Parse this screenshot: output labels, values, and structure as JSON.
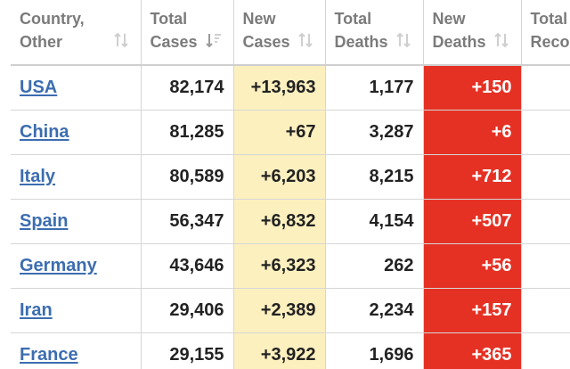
{
  "table": {
    "headers": [
      {
        "label": "Country,\nOther",
        "sort_icon": "sort-arrows-icon"
      },
      {
        "label": "Total\nCases",
        "sort_icon": "sort-descending-icon"
      },
      {
        "label": "New\nCases",
        "sort_icon": "sort-arrows-icon"
      },
      {
        "label": "Total\nDeaths",
        "sort_icon": "sort-arrows-icon"
      },
      {
        "label": "New\nDeaths",
        "sort_icon": "sort-arrows-icon"
      },
      {
        "label": "Total\nReco",
        "sort_icon": ""
      }
    ],
    "rows": [
      {
        "country": "USA",
        "total_cases": "82,174",
        "new_cases": "+13,963",
        "total_deaths": "1,177",
        "new_deaths": "+150"
      },
      {
        "country": "China",
        "total_cases": "81,285",
        "new_cases": "+67",
        "total_deaths": "3,287",
        "new_deaths": "+6"
      },
      {
        "country": "Italy",
        "total_cases": "80,589",
        "new_cases": "+6,203",
        "total_deaths": "8,215",
        "new_deaths": "+712"
      },
      {
        "country": "Spain",
        "total_cases": "56,347",
        "new_cases": "+6,832",
        "total_deaths": "4,154",
        "new_deaths": "+507"
      },
      {
        "country": "Germany",
        "total_cases": "43,646",
        "new_cases": "+6,323",
        "total_deaths": "262",
        "new_deaths": "+56"
      },
      {
        "country": "Iran",
        "total_cases": "29,406",
        "new_cases": "+2,389",
        "total_deaths": "2,234",
        "new_deaths": "+157"
      },
      {
        "country": "France",
        "total_cases": "29,155",
        "new_cases": "+3,922",
        "total_deaths": "1,696",
        "new_deaths": "+365"
      }
    ]
  },
  "colors": {
    "new_cases_bg": "#fdf0bf",
    "new_deaths_bg": "#e53124",
    "link": "#3c6db0",
    "header_text": "#7b7b7b"
  }
}
